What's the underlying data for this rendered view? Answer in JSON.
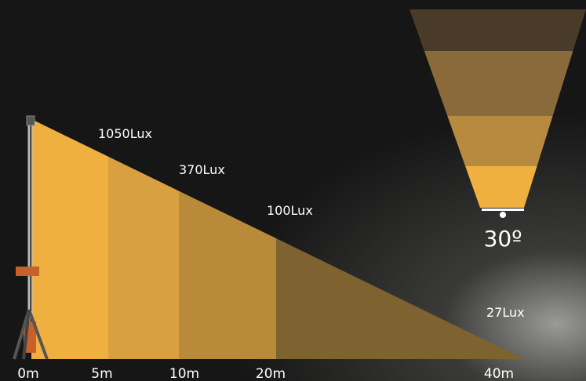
{
  "distances": [
    "0m",
    "5m",
    "10m",
    "20m",
    "40m"
  ],
  "illuminance": [
    "1050Lux",
    "370Lux",
    "100Lux",
    "27Lux"
  ],
  "beam_angle": "30º"
}
